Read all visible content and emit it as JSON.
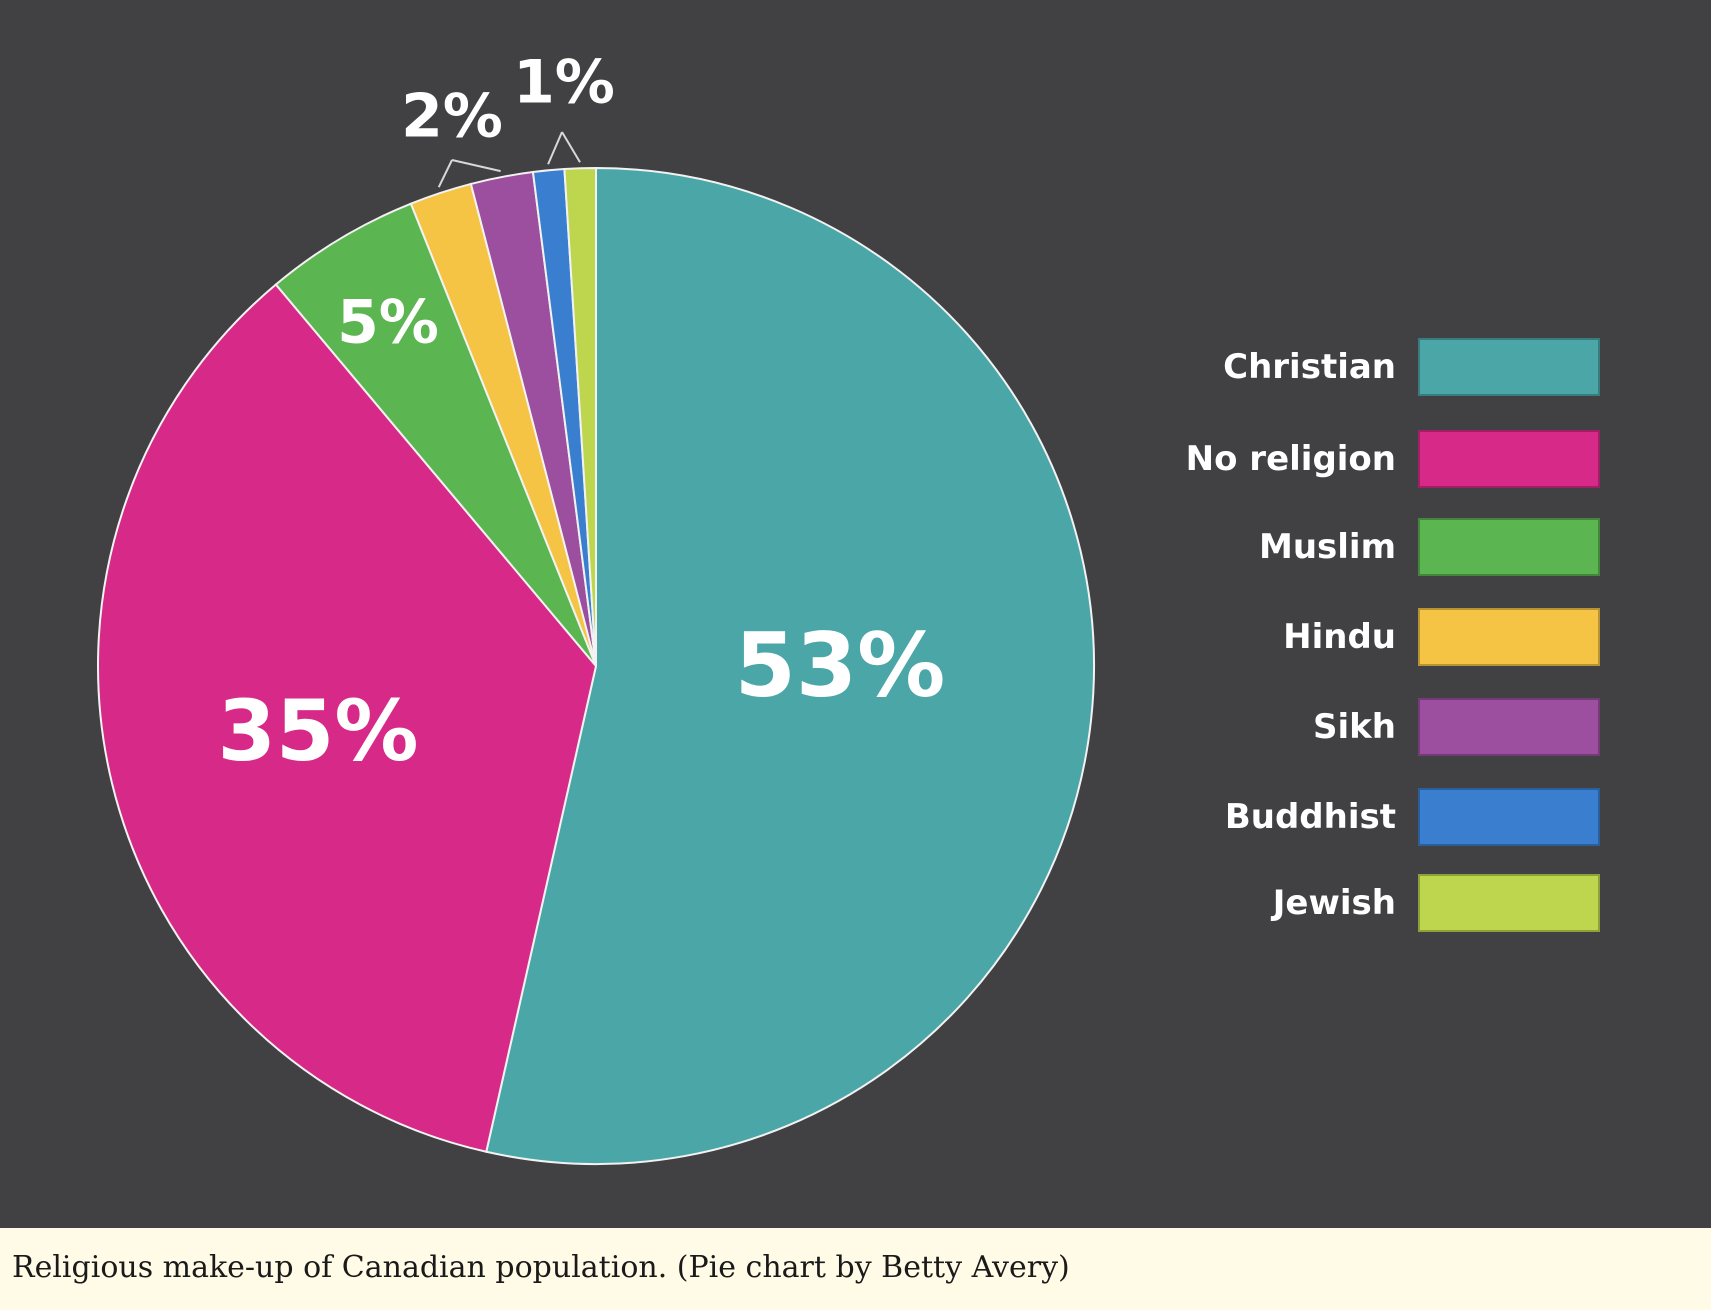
{
  "caption": "Religious make-up of Canadian population. (Pie chart by Betty Avery)",
  "chart_data": {
    "type": "pie",
    "title": "",
    "categories": [
      "Christian",
      "No religion",
      "Muslim",
      "Hindu",
      "Sikh",
      "Buddhist",
      "Jewish"
    ],
    "values": [
      53,
      35,
      5,
      2,
      2,
      1,
      1
    ],
    "value_labels": [
      "53%",
      "35%",
      "5%",
      "2%",
      "",
      "1%",
      ""
    ],
    "colors": [
      "#4ba6a8",
      "#d72a88",
      "#5bb550",
      "#f5c444",
      "#9b4f9e",
      "#3a7fcf",
      "#bed64d"
    ],
    "legend_position": "right",
    "background": "#414042"
  }
}
